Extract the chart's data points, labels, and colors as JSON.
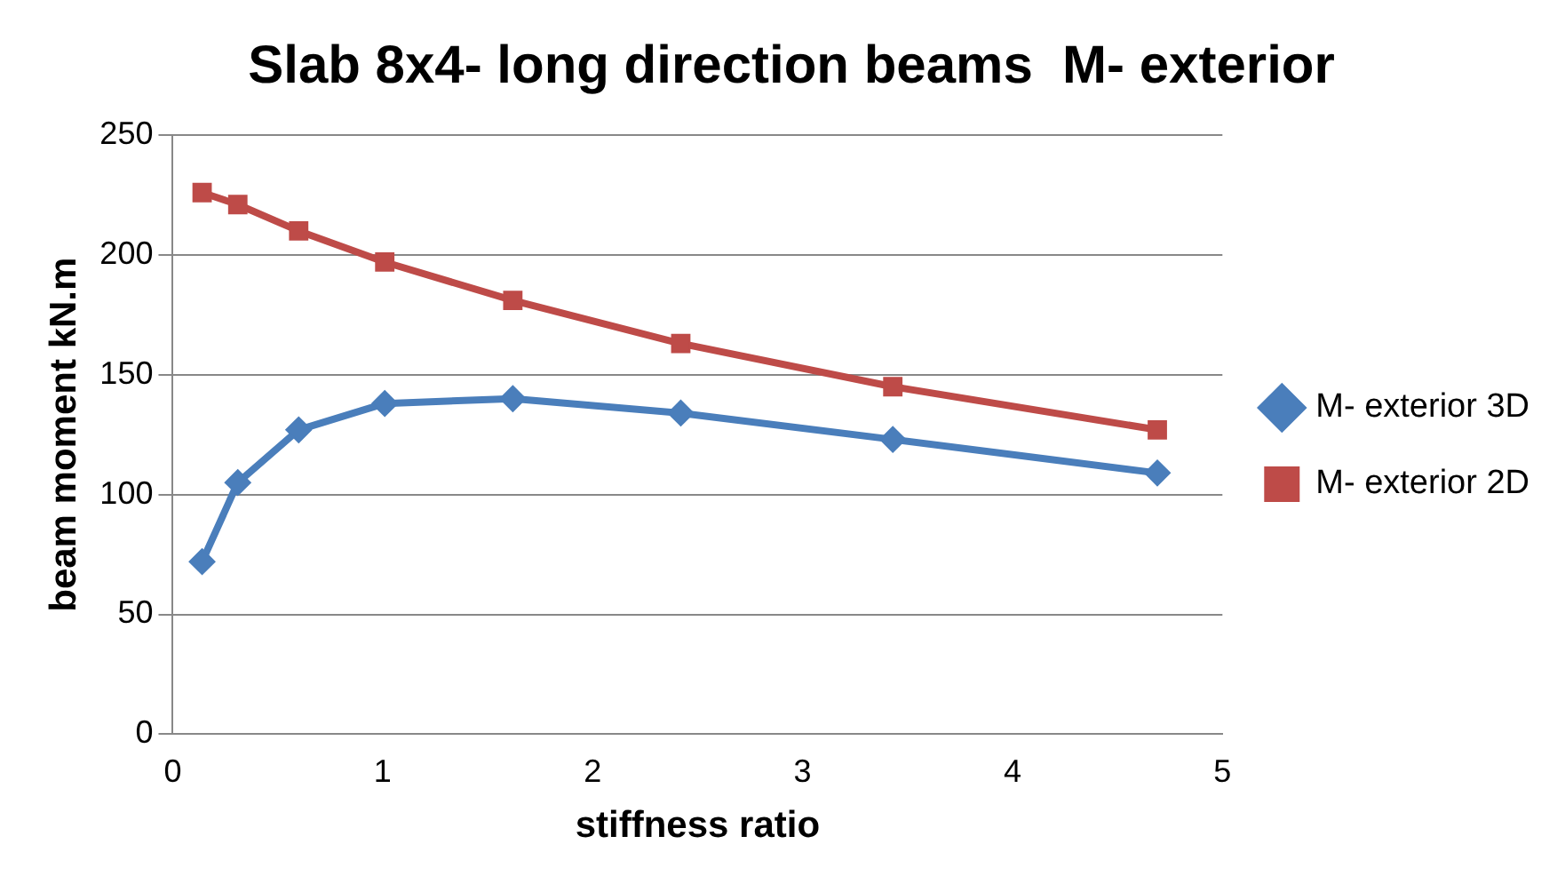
{
  "chart_data": {
    "type": "line",
    "title": "Slab 8x4- long direction beams  M- exterior",
    "xlabel": "stiffness ratio",
    "ylabel": "beam moment kN.m",
    "x": [
      0.14,
      0.31,
      0.6,
      1.01,
      1.62,
      2.42,
      3.43,
      4.69
    ],
    "series": [
      {
        "name": "M- exterior 3D",
        "color": "#4a7ebb",
        "marker": "diamond",
        "values": [
          72,
          105,
          127,
          138,
          140,
          134,
          123,
          109
        ]
      },
      {
        "name": "M- exterior 2D",
        "color": "#be4b48",
        "marker": "square",
        "values": [
          226,
          221,
          210,
          197,
          181,
          163,
          145,
          127
        ]
      }
    ],
    "xlim": [
      0,
      5
    ],
    "xticks": [
      0,
      1,
      2,
      3,
      4,
      5
    ],
    "ylim": [
      0,
      250
    ],
    "yticks": [
      0,
      50,
      100,
      150,
      200,
      250
    ],
    "grid": "y",
    "legend": "right",
    "line_style": "solid"
  }
}
